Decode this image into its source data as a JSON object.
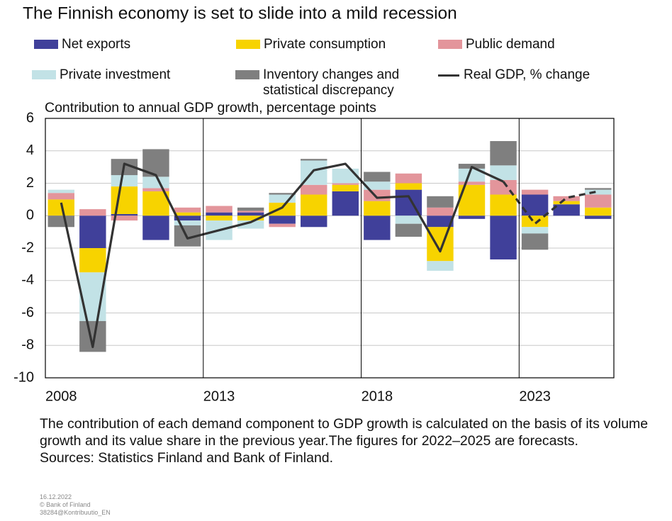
{
  "chart_data": {
    "type": "stacked_bar_line",
    "title": "The Finnish economy is set to slide into a mild recession",
    "subtitle": "Contribution to annual GDP growth, percentage points",
    "categories": [
      "2008",
      null,
      null,
      null,
      null,
      "2013",
      null,
      null,
      null,
      null,
      "2018",
      null,
      null,
      null,
      null,
      "2023",
      null,
      null
    ],
    "series": [
      {
        "name": "Net exports",
        "color": "#40409a",
        "values": [
          0,
          -2.0,
          0.1,
          -1.5,
          -0.3,
          0.2,
          0.2,
          -0.5,
          -0.7,
          1.5,
          -1.5,
          1.6,
          -0.7,
          -0.2,
          -2.7,
          1.3,
          0.7,
          -0.2
        ]
      },
      {
        "name": "Private consumption",
        "color": "#f7d300",
        "values": [
          1.0,
          -1.5,
          1.7,
          1.5,
          0.2,
          -0.3,
          -0.3,
          0.8,
          1.3,
          0.4,
          0.9,
          0.4,
          -2.1,
          1.9,
          1.3,
          -0.7,
          0.2,
          0.5
        ]
      },
      {
        "name": "Public demand",
        "color": "#e3959b",
        "values": [
          0.4,
          0.4,
          -0.3,
          0.2,
          0.3,
          0.4,
          0.1,
          -0.2,
          0.6,
          0.1,
          0.7,
          0.6,
          0.5,
          0.2,
          0.9,
          0.3,
          0.3,
          0.8
        ]
      },
      {
        "name": "Private investment",
        "color": "#c2e2e6",
        "values": [
          0.2,
          -3.0,
          0.7,
          0.7,
          -0.3,
          -1.2,
          -0.5,
          0.5,
          1.5,
          0.9,
          0.5,
          -0.5,
          -0.6,
          0.8,
          0.9,
          -0.4,
          0,
          0.3
        ]
      },
      {
        "name": "Inventory changes and statistical discrepancy",
        "color": "#7f7f7f",
        "values": [
          -0.7,
          -1.9,
          1.0,
          1.7,
          -1.3,
          0,
          0.2,
          0.1,
          0.1,
          0,
          0.6,
          -0.8,
          0.7,
          0.3,
          1.5,
          -1.0,
          0,
          0.1
        ]
      },
      {
        "name": "Real GDP, % change",
        "color": "#333333",
        "kind": "line",
        "dashed_from": 14,
        "values": [
          0.8,
          -8.1,
          3.2,
          2.5,
          -1.4,
          -0.9,
          -0.4,
          0.5,
          2.8,
          3.2,
          1.1,
          1.2,
          -2.2,
          3.0,
          2.1,
          -0.5,
          1.1,
          1.5
        ]
      }
    ],
    "ylim": [
      -10,
      6
    ],
    "yticks": [
      -10,
      -8,
      -6,
      -4,
      -2,
      0,
      2,
      4,
      6
    ],
    "grid": true,
    "note": "The contribution of each demand component to GDP growth is calculated on the basis of its volume growth and its value share in the previous year.The figures for 2022–2025 are forecasts.",
    "source": "Sources: Statistics Finland and Bank of Finland.",
    "date": "16.12.2022",
    "copyright": "© Bank of Finland",
    "reference": "38284@Kontribuutio_EN"
  }
}
